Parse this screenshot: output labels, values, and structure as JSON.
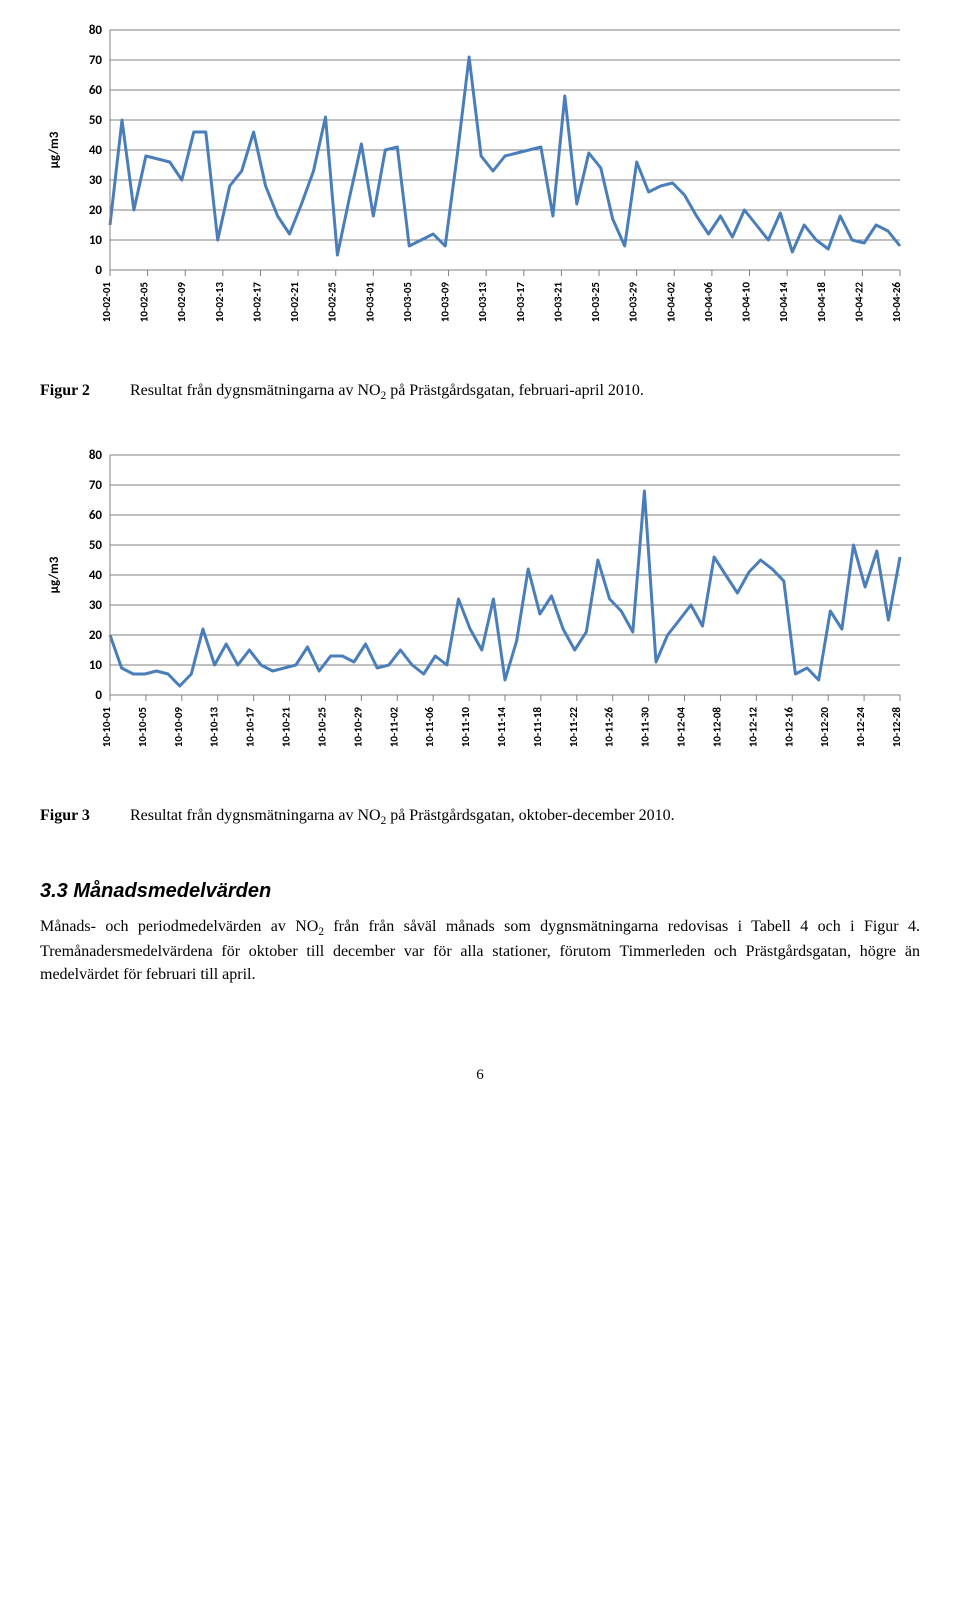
{
  "charts": [
    {
      "type": "line",
      "ylabel": "μg/m3",
      "ylim": [
        0,
        80
      ],
      "ytick_step": 10,
      "line_color": "#4a7ebb",
      "line_width": 3,
      "grid_color": "#808080",
      "axis_color": "#808080",
      "background_color": "#ffffff",
      "label_fontsize": 11,
      "label_font_weight": "bold",
      "x_labels": [
        "10-02-01",
        "10-02-05",
        "10-02-09",
        "10-02-13",
        "10-02-17",
        "10-02-21",
        "10-02-25",
        "10-03-01",
        "10-03-05",
        "10-03-09",
        "10-03-13",
        "10-03-17",
        "10-03-21",
        "10-03-25",
        "10-03-29",
        "10-04-02",
        "10-04-06",
        "10-04-10",
        "10-04-14",
        "10-04-18",
        "10-04-22",
        "10-04-26"
      ],
      "values": [
        15,
        50,
        20,
        38,
        37,
        36,
        30,
        46,
        46,
        10,
        28,
        33,
        46,
        28,
        18,
        12,
        22,
        33,
        51,
        5,
        24,
        42,
        18,
        40,
        41,
        8,
        10,
        12,
        8,
        38,
        71,
        38,
        33,
        38,
        39,
        40,
        41,
        18,
        58,
        22,
        39,
        34,
        17,
        8,
        36,
        26,
        28,
        29,
        25,
        18,
        12,
        18,
        11,
        20,
        15,
        10,
        19,
        6,
        15,
        10,
        7,
        18,
        10,
        9,
        15,
        13,
        8
      ]
    },
    {
      "type": "line",
      "ylabel": "μg/m3",
      "ylim": [
        0,
        80
      ],
      "ytick_step": 10,
      "line_color": "#4a7ebb",
      "line_width": 3,
      "grid_color": "#808080",
      "axis_color": "#808080",
      "background_color": "#ffffff",
      "label_fontsize": 11,
      "label_font_weight": "bold",
      "x_labels": [
        "10-10-01",
        "10-10-05",
        "10-10-09",
        "10-10-13",
        "10-10-17",
        "10-10-21",
        "10-10-25",
        "10-10-29",
        "10-11-02",
        "10-11-06",
        "10-11-10",
        "10-11-14",
        "10-11-18",
        "10-11-22",
        "10-11-26",
        "10-11-30",
        "10-12-04",
        "10-12-08",
        "10-12-12",
        "10-12-16",
        "10-12-20",
        "10-12-24",
        "10-12-28"
      ],
      "values": [
        20,
        9,
        7,
        7,
        8,
        7,
        3,
        7,
        22,
        10,
        17,
        10,
        15,
        10,
        8,
        9,
        10,
        16,
        8,
        13,
        13,
        11,
        17,
        9,
        10,
        15,
        10,
        7,
        13,
        10,
        32,
        22,
        15,
        32,
        5,
        18,
        42,
        27,
        33,
        22,
        15,
        21,
        45,
        32,
        28,
        21,
        68,
        11,
        20,
        25,
        30,
        23,
        46,
        40,
        34,
        41,
        45,
        42,
        38,
        7,
        9,
        5,
        28,
        22,
        50,
        36,
        48,
        25,
        46
      ]
    }
  ],
  "captions": [
    {
      "label": "Figur 2",
      "text_pre": "Resultat från dygnsmätningarna av NO",
      "sub": "2",
      "text_post": " på Prästgårdsgatan, februari-april 2010."
    },
    {
      "label": "Figur 3",
      "text_pre": "Resultat från dygnsmätningarna av NO",
      "sub": "2",
      "text_post": " på Prästgårdsgatan, oktober-december 2010."
    }
  ],
  "section_heading": "3.3 Månadsmedelvärden",
  "paragraph": {
    "part1": "Månads- och periodmedelvärden av NO",
    "sub": "2",
    "part2": " från från såväl månads som dygnsmätningarna redovisas i Tabell 4 och i Figur 4. Tremånadersmedelvärdena för oktober till december var för alla stationer, förutom Timmerleden och Prästgårdsgatan, högre än medelvärdet för februari till april."
  },
  "page_number": "6"
}
